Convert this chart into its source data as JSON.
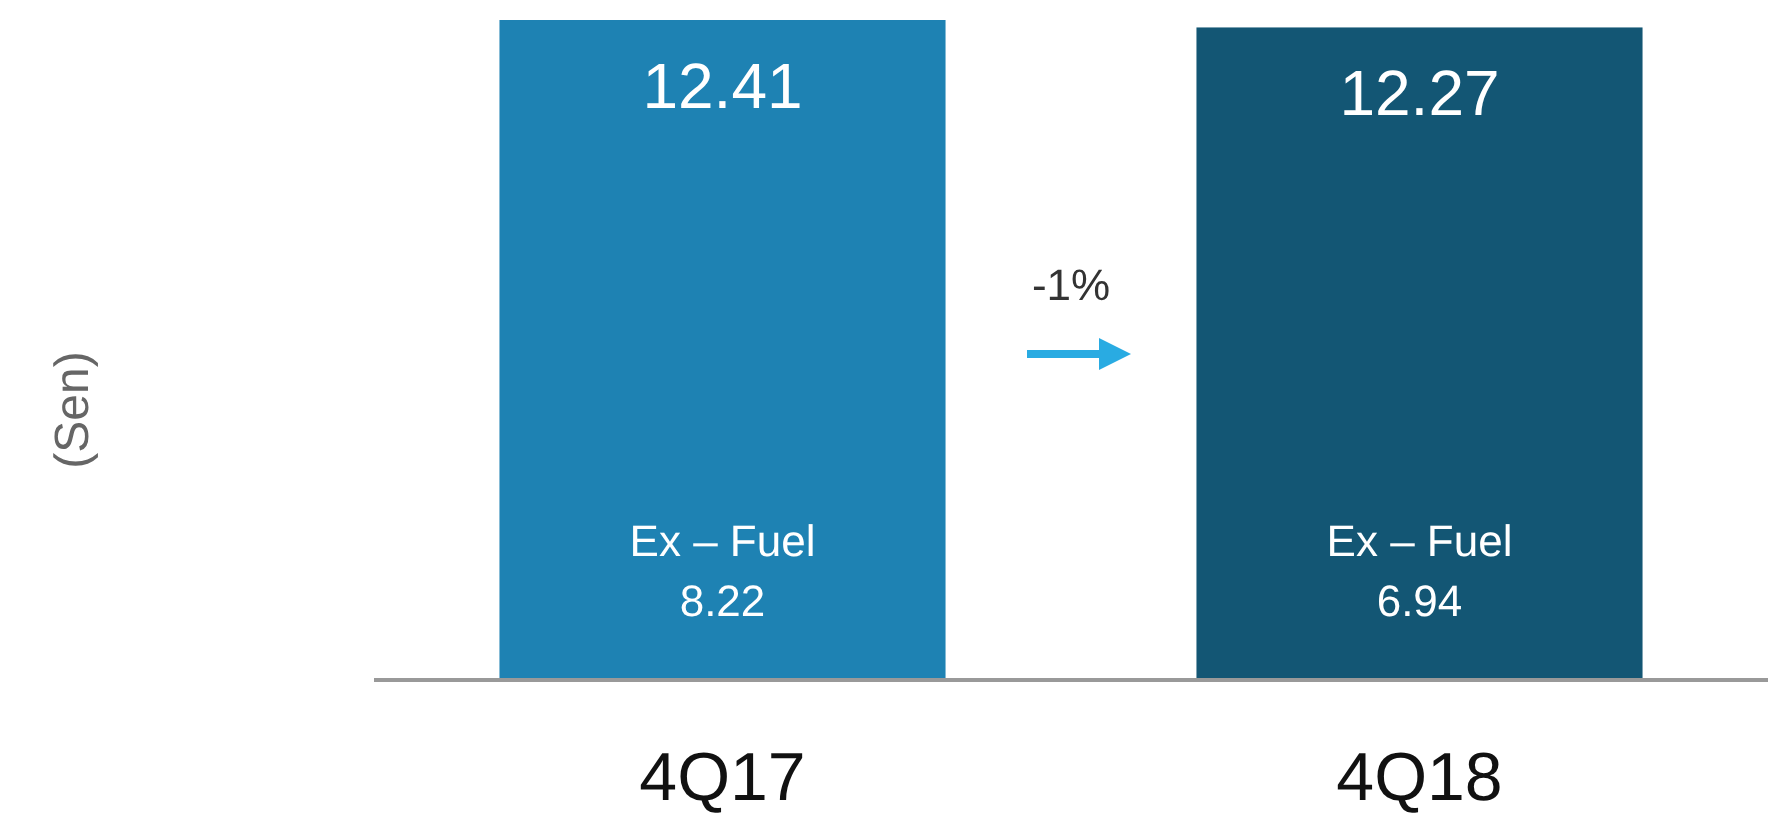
{
  "chart_data": {
    "type": "bar",
    "categories": [
      "4Q17",
      "4Q18"
    ],
    "values": [
      12.41,
      12.27
    ],
    "colors": [
      "#1e82b3",
      "#135674"
    ],
    "data_labels": true,
    "annotations": [
      "(Sen)",
      "-1%",
      "Ex – Fuel",
      "8.22",
      "Ex – Fuel",
      "6.94"
    ]
  }
}
